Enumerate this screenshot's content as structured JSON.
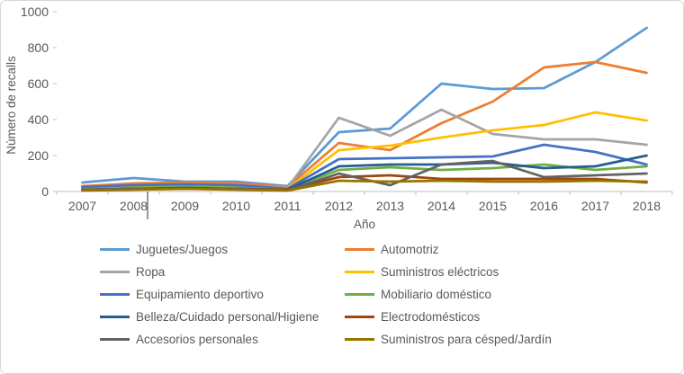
{
  "styles": {
    "text_color": "#595959",
    "axis_line_color": "#BFBFBF",
    "frame_border_color": "#D6D6D6",
    "background_color": "#FFFFFF"
  },
  "chart_data": {
    "type": "line",
    "title": "",
    "xlabel": "Año",
    "ylabel": "Número de recalls",
    "ylim": [
      0,
      1000
    ],
    "yticks": [
      0,
      200,
      400,
      600,
      800,
      1000
    ],
    "grid": false,
    "legend_position": "bottom",
    "categories": [
      "2007",
      "2008",
      "2009",
      "2010",
      "2011",
      "2012",
      "2013",
      "2014",
      "2015",
      "2016",
      "2017",
      "2018"
    ],
    "series": [
      {
        "name": "Juguetes/Juegos",
        "color": "#5B9BD5",
        "values": [
          50,
          75,
          55,
          55,
          30,
          330,
          350,
          600,
          570,
          575,
          720,
          910
        ]
      },
      {
        "name": "Automotriz",
        "color": "#ED7D31",
        "values": [
          30,
          45,
          50,
          45,
          25,
          270,
          230,
          380,
          500,
          690,
          720,
          660
        ]
      },
      {
        "name": "Ropa",
        "color": "#A5A5A5",
        "values": [
          20,
          30,
          35,
          30,
          20,
          410,
          310,
          455,
          320,
          290,
          290,
          260
        ]
      },
      {
        "name": "Suministros eléctricos",
        "color": "#FFC000",
        "values": [
          15,
          25,
          30,
          25,
          15,
          230,
          255,
          300,
          340,
          370,
          440,
          395
        ]
      },
      {
        "name": "Equipamiento deportivo",
        "color": "#4472C4",
        "values": [
          25,
          35,
          40,
          35,
          15,
          180,
          185,
          190,
          195,
          260,
          220,
          150
        ]
      },
      {
        "name": "Mobiliario doméstico",
        "color": "#70AD47",
        "values": [
          10,
          20,
          25,
          20,
          10,
          120,
          135,
          120,
          130,
          150,
          120,
          140
        ]
      },
      {
        "name": "Belleza/Cuidado personal/Higiene",
        "color": "#255E91",
        "values": [
          10,
          15,
          20,
          15,
          10,
          140,
          150,
          150,
          160,
          130,
          140,
          200
        ]
      },
      {
        "name": "Electrodomésticos",
        "color": "#9E480E",
        "values": [
          10,
          15,
          15,
          15,
          10,
          80,
          90,
          70,
          70,
          70,
          70,
          50
        ]
      },
      {
        "name": "Accesorios personales",
        "color": "#636363",
        "values": [
          10,
          15,
          15,
          15,
          5,
          100,
          35,
          150,
          170,
          80,
          90,
          100
        ]
      },
      {
        "name": "Suministros para césped/Jardín",
        "color": "#997300",
        "values": [
          5,
          10,
          15,
          10,
          5,
          60,
          55,
          60,
          55,
          55,
          60,
          55
        ]
      }
    ]
  }
}
